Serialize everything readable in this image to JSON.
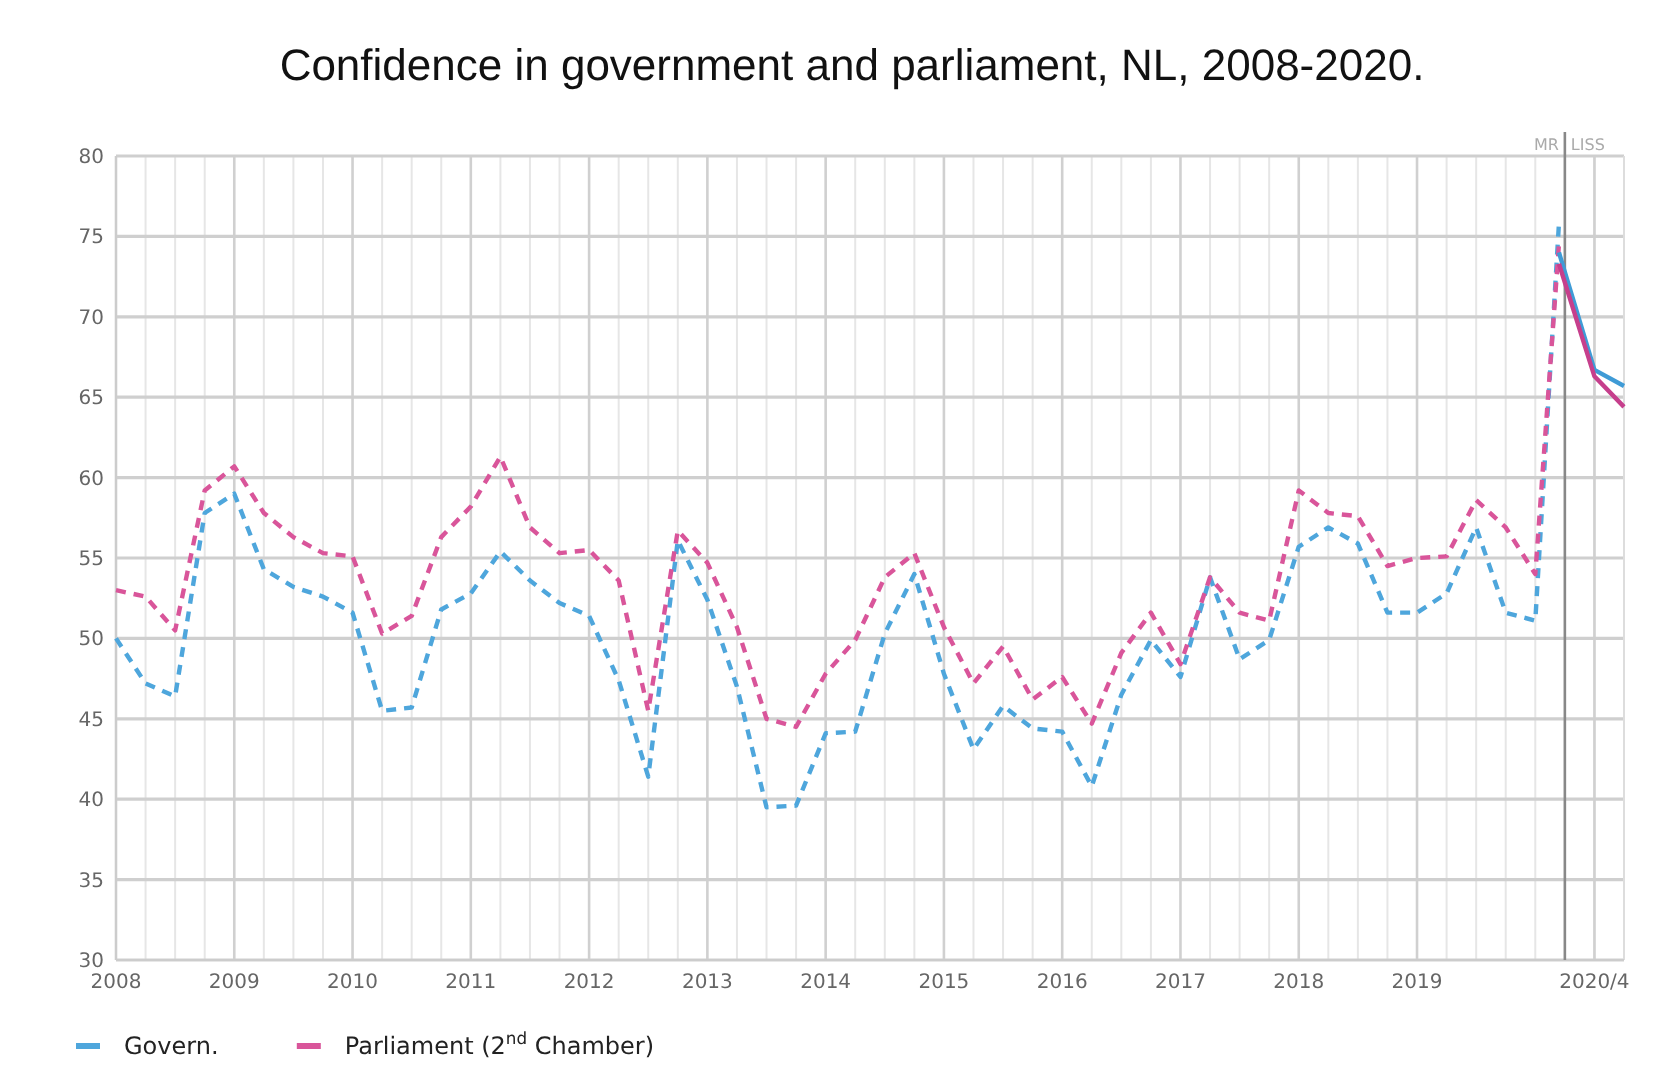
{
  "chart_data": {
    "type": "line",
    "title": "Confidence in government and parliament, NL,  2008-2020.",
    "xlim": [
      2008,
      2020.75
    ],
    "xticks": [
      2008,
      2009,
      2010,
      2011,
      2012,
      2013,
      2014,
      2015,
      2016,
      2017,
      2018,
      2019,
      {
        "value": 2020.5,
        "label": "2020/4"
      }
    ],
    "ylim": [
      30,
      80
    ],
    "yticks": [
      30,
      35,
      40,
      45,
      50,
      55,
      60,
      65,
      70,
      75,
      80
    ],
    "grid": true,
    "legend": "bottom left",
    "series": [
      {
        "name": "Govern.",
        "color": "#4ea6dc",
        "line_style": "dashed",
        "x": [
          2008,
          2008.25,
          2008.5,
          2008.75,
          2009,
          2009.25,
          2009.5,
          2009.75,
          2010,
          2010.25,
          2010.5,
          2010.75,
          2011,
          2011.25,
          2011.5,
          2011.75,
          2012,
          2012.25,
          2012.5,
          2012.75,
          2013,
          2013.25,
          2013.5,
          2013.75,
          2014,
          2014.25,
          2014.5,
          2014.75,
          2015,
          2015.25,
          2015.5,
          2015.75,
          2016,
          2016.25,
          2016.5,
          2016.75,
          2017,
          2017.25,
          2017.5,
          2017.75,
          2018,
          2018.25,
          2018.5,
          2018.75,
          2019,
          2019.25,
          2019.5,
          2019.75,
          2020,
          2020.2
        ],
        "values": [
          50,
          47.2,
          46.4,
          57.8,
          59,
          54.3,
          53.2,
          52.6,
          51.6,
          45.5,
          45.7,
          51.8,
          52.8,
          55.4,
          53.6,
          52.2,
          51.4,
          47.4,
          41.4,
          56.1,
          52.4,
          47,
          39.5,
          39.6,
          44.1,
          44.2,
          50.3,
          54,
          47.8,
          43.1,
          45.8,
          44.4,
          44.2,
          40.8,
          46.5,
          49.9,
          47.6,
          53.8,
          48.7,
          49.9,
          55.7,
          56.9,
          55.9,
          51.6,
          51.6,
          52.8,
          56.9,
          51.6,
          51.1,
          75.8
        ]
      },
      {
        "name": "Parliament (2$^{nd}$ Chamber)",
        "color": "#d9559a",
        "line_style": "dashed",
        "x": [
          2008,
          2008.25,
          2008.5,
          2008.75,
          2009,
          2009.25,
          2009.5,
          2009.75,
          2010,
          2010.25,
          2010.5,
          2010.75,
          2011,
          2011.25,
          2011.5,
          2011.75,
          2012,
          2012.25,
          2012.5,
          2012.75,
          2013,
          2013.25,
          2013.5,
          2013.75,
          2014,
          2014.25,
          2014.5,
          2014.75,
          2015,
          2015.25,
          2015.5,
          2015.75,
          2016,
          2016.25,
          2016.5,
          2016.75,
          2017,
          2017.25,
          2017.5,
          2017.75,
          2018,
          2018.25,
          2018.5,
          2018.75,
          2019,
          2019.25,
          2019.5,
          2019.75,
          2020,
          2020.2
        ],
        "values": [
          53,
          52.6,
          50.5,
          59.2,
          60.7,
          57.8,
          56.3,
          55.3,
          55.1,
          50.3,
          51.4,
          56.3,
          58.2,
          61.3,
          56.9,
          55.3,
          55.5,
          53.6,
          45.5,
          56.7,
          54.7,
          50.7,
          45,
          44.5,
          47.8,
          49.9,
          53.8,
          55.3,
          50.7,
          47.2,
          49.5,
          46.2,
          47.6,
          44.7,
          49.1,
          51.6,
          48.4,
          53.8,
          51.6,
          51.1,
          59.2,
          57.8,
          57.6,
          54.5,
          55,
          55.1,
          58.6,
          56.9,
          54,
          74.5
        ]
      },
      {
        "color": "#3f9bd6",
        "line_style": "solid",
        "x": [
          2020.2,
          2020.5,
          2020.75
        ],
        "values": [
          74,
          66.7,
          65.7
        ]
      },
      {
        "color": "#c63f8c",
        "line_style": "solid",
        "x": [
          2020.2,
          2020.5,
          2020.75
        ],
        "values": [
          73.3,
          66.3,
          64.4
        ]
      }
    ],
    "ref_lines": [
      {
        "axis": "x",
        "value": 2020.25,
        "color": "#888888"
      }
    ],
    "annotations": [
      "MR",
      "LISS"
    ]
  }
}
